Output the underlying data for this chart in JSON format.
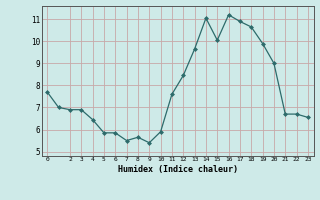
{
  "x": [
    0,
    1,
    2,
    3,
    4,
    5,
    6,
    7,
    8,
    9,
    10,
    11,
    12,
    13,
    14,
    15,
    16,
    17,
    18,
    19,
    20,
    21,
    22,
    23
  ],
  "y": [
    7.7,
    7.0,
    6.9,
    6.9,
    6.45,
    5.85,
    5.85,
    5.5,
    5.65,
    5.4,
    5.9,
    7.6,
    8.45,
    9.65,
    11.05,
    10.05,
    11.2,
    10.9,
    10.65,
    9.9,
    9.0,
    6.7,
    6.7,
    6.55
  ],
  "xlim": [
    -0.5,
    23.5
  ],
  "ylim": [
    4.8,
    11.6
  ],
  "yticks": [
    5,
    6,
    7,
    8,
    9,
    10,
    11
  ],
  "xticks": [
    0,
    2,
    3,
    4,
    5,
    6,
    7,
    8,
    9,
    10,
    11,
    12,
    13,
    14,
    15,
    16,
    17,
    18,
    19,
    20,
    21,
    22,
    23
  ],
  "xlabel": "Humidex (Indice chaleur)",
  "line_color": "#2d6b6b",
  "marker": "D",
  "marker_size": 2.0,
  "bg_color": "#ceeae8",
  "grid_color": "#c8a8a8",
  "axis_color": "#555555"
}
